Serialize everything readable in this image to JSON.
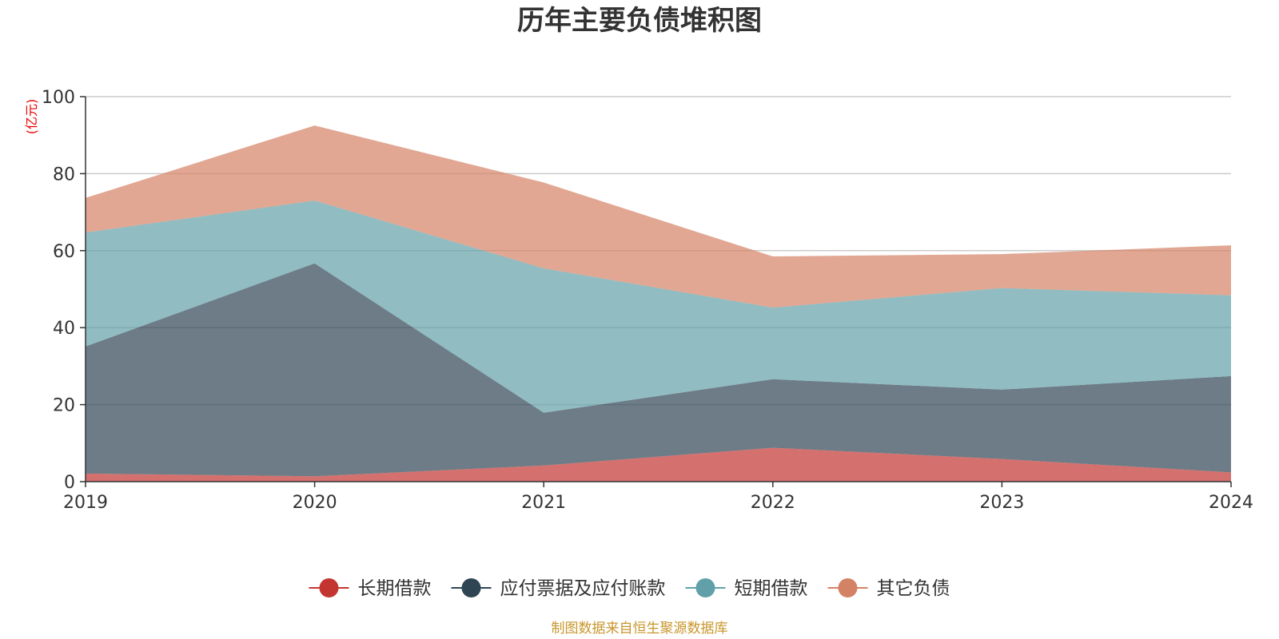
{
  "chart_data": {
    "type": "area",
    "stacked": true,
    "title": "历年主要负债堆积图",
    "y_unit_label": "(亿元)",
    "x": [
      "2019",
      "2020",
      "2021",
      "2022",
      "2023",
      "2024"
    ],
    "ylim": [
      0,
      100
    ],
    "y_ticks": [
      "0",
      "20",
      "40",
      "60",
      "80",
      "100"
    ],
    "grid": true,
    "legend_position": "bottom-center",
    "series": [
      {
        "name": "长期借款",
        "values": [
          2.1,
          1.4,
          4.2,
          8.8,
          5.9,
          2.4
        ],
        "color": "#c23531"
      },
      {
        "name": "应付票据及应付账款",
        "values": [
          33.0,
          55.3,
          13.7,
          17.8,
          18.0,
          25.0
        ],
        "color": "#2f4554"
      },
      {
        "name": "短期借款",
        "values": [
          29.6,
          16.3,
          37.5,
          18.6,
          26.4,
          21.0
        ],
        "color": "#61a0a8"
      },
      {
        "name": "其它负债",
        "values": [
          9.0,
          19.5,
          22.3,
          13.3,
          8.8,
          13.0
        ],
        "color": "#d48265"
      }
    ],
    "source_note": "制图数据来自恒生聚源数据库"
  }
}
